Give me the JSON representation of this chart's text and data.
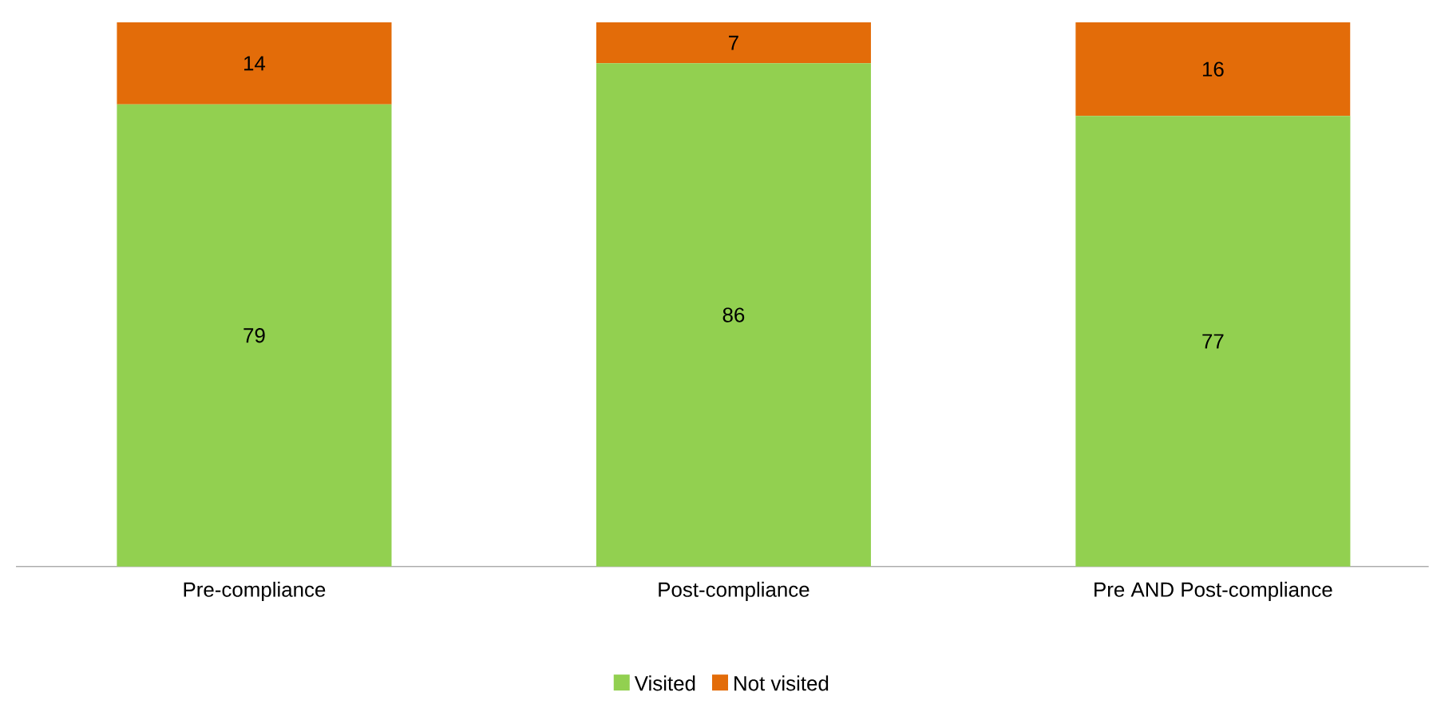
{
  "chart_data": {
    "type": "bar",
    "stacked": true,
    "data_labels": true,
    "legend": "bottom",
    "categories": [
      "Pre-compliance",
      "Post-compliance",
      "Pre AND Post-compliance"
    ],
    "series": [
      {
        "name": "Visited",
        "color": "#92d050",
        "values": [
          79,
          86,
          77
        ]
      },
      {
        "name": "Not visited",
        "color": "#e36c09",
        "values": [
          14,
          7,
          16
        ]
      }
    ]
  }
}
